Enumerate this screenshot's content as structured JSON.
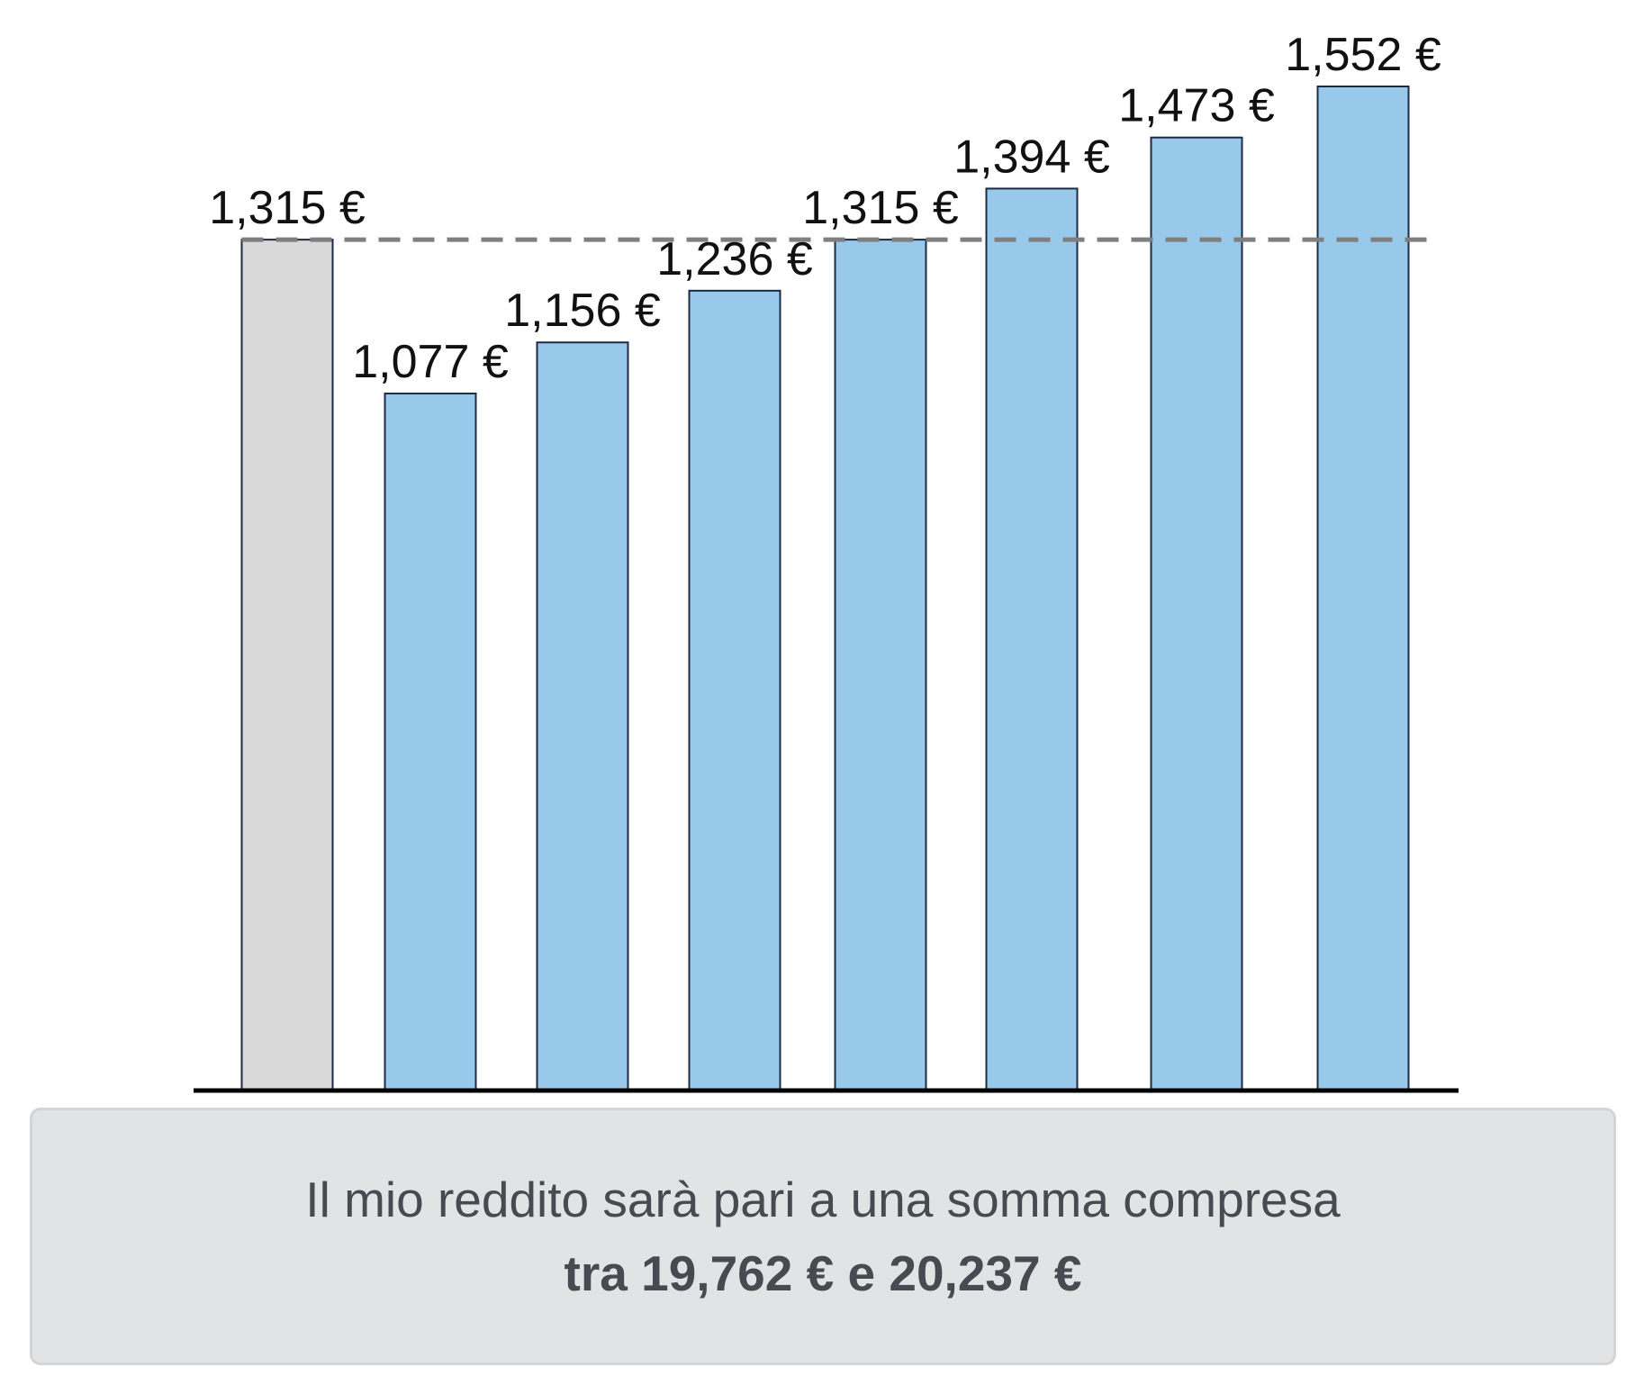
{
  "chart_data": {
    "type": "bar",
    "categories": [
      "",
      "",
      "",
      "",
      "",
      "",
      "",
      ""
    ],
    "values": [
      1315,
      1077,
      1156,
      1236,
      1315,
      1394,
      1473,
      1552
    ],
    "value_labels": [
      "1,315 €",
      "1,077 €",
      "1,156 €",
      "1,236 €",
      "1,315 €",
      "1,394 €",
      "1,473 €",
      "1,552 €"
    ],
    "bar_colors": [
      "#d9d9d9",
      "#99c9ea",
      "#99c9ea",
      "#99c9ea",
      "#99c9ea",
      "#99c9ea",
      "#99c9ea",
      "#99c9ea"
    ],
    "bar_outline_color": "#1d2a44",
    "reference_line": {
      "value": 1315,
      "style": "dashed",
      "color": "#7f7f7f"
    },
    "baseline_color": "#000000",
    "ylim": [
      0,
      1552
    ],
    "grid": false,
    "legend": "none",
    "title": "",
    "xlabel": "",
    "ylabel": ""
  },
  "income_box": {
    "line1": "Il mio reddito sarà pari a una somma compresa",
    "line2": "tra 19,762 € e 20,237 €"
  }
}
